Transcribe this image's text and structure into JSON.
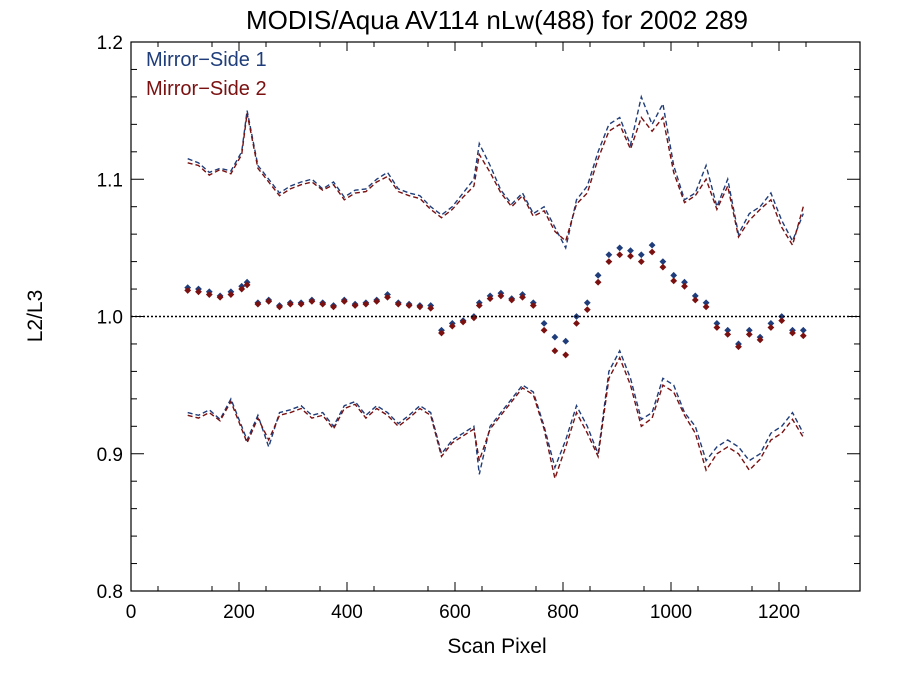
{
  "chart_data": {
    "type": "line",
    "title": "MODIS/Aqua AV114 nLw(488) for 2002 289",
    "xlabel": "Scan Pixel",
    "ylabel": "L2/L3",
    "xlim": [
      0,
      1350
    ],
    "ylim": [
      0.8,
      1.2
    ],
    "xticks": [
      0,
      200,
      400,
      600,
      800,
      1000,
      1200
    ],
    "xtick_labels": [
      "0",
      "200",
      "400",
      "600",
      "800",
      "1000",
      "1200"
    ],
    "yticks": [
      0.8,
      0.9,
      1.0,
      1.1,
      1.2
    ],
    "ytick_labels": [
      "0.8",
      "0.9",
      "1.0",
      "1.1",
      "1.2"
    ],
    "legend": [
      "Mirror−Side 1",
      "Mirror−Side 2"
    ],
    "legend_position": "top-left",
    "colors": {
      "ms1": "#1f3d7a",
      "ms2": "#7a1010",
      "ref": "#000000"
    },
    "reference_line": 1.0,
    "x": [
      105,
      125,
      145,
      165,
      185,
      205,
      215,
      235,
      255,
      275,
      295,
      315,
      335,
      355,
      375,
      395,
      415,
      435,
      455,
      475,
      495,
      515,
      535,
      555,
      575,
      595,
      615,
      635,
      645,
      665,
      685,
      705,
      725,
      745,
      765,
      785,
      805,
      825,
      845,
      865,
      885,
      905,
      925,
      945,
      965,
      985,
      1005,
      1025,
      1045,
      1065,
      1085,
      1105,
      1125,
      1145,
      1165,
      1185,
      1205,
      1225,
      1245
    ],
    "series": [
      {
        "name": "Mirror−Side 1",
        "upper": [
          1.115,
          1.112,
          1.105,
          1.108,
          1.106,
          1.12,
          1.15,
          1.11,
          1.1,
          1.09,
          1.095,
          1.098,
          1.1,
          1.093,
          1.098,
          1.087,
          1.092,
          1.093,
          1.1,
          1.105,
          1.093,
          1.09,
          1.088,
          1.08,
          1.074,
          1.08,
          1.09,
          1.1,
          1.126,
          1.11,
          1.092,
          1.082,
          1.09,
          1.075,
          1.08,
          1.065,
          1.05,
          1.085,
          1.095,
          1.12,
          1.14,
          1.145,
          1.125,
          1.16,
          1.14,
          1.155,
          1.11,
          1.085,
          1.09,
          1.11,
          1.08,
          1.1,
          1.06,
          1.075,
          1.08,
          1.09,
          1.07,
          1.055,
          1.075
        ],
        "ratio": [
          1.021,
          1.02,
          1.018,
          1.015,
          1.018,
          1.022,
          1.025,
          1.01,
          1.012,
          1.008,
          1.01,
          1.01,
          1.012,
          1.01,
          1.008,
          1.012,
          1.009,
          1.01,
          1.012,
          1.016,
          1.01,
          1.009,
          1.008,
          1.008,
          0.99,
          0.995,
          0.997,
          1.0,
          1.01,
          1.015,
          1.017,
          1.013,
          1.016,
          1.01,
          0.995,
          0.985,
          0.982,
          1.0,
          1.01,
          1.03,
          1.045,
          1.05,
          1.048,
          1.045,
          1.052,
          1.04,
          1.03,
          1.025,
          1.015,
          1.01,
          0.995,
          0.99,
          0.98,
          0.99,
          0.985,
          0.995,
          1.0,
          0.99,
          0.99
        ],
        "lower": [
          0.93,
          0.928,
          0.932,
          0.925,
          0.94,
          0.92,
          0.91,
          0.928,
          0.905,
          0.93,
          0.932,
          0.935,
          0.928,
          0.93,
          0.92,
          0.935,
          0.938,
          0.928,
          0.935,
          0.93,
          0.922,
          0.928,
          0.935,
          0.93,
          0.9,
          0.91,
          0.915,
          0.92,
          0.885,
          0.92,
          0.93,
          0.94,
          0.95,
          0.945,
          0.92,
          0.89,
          0.91,
          0.935,
          0.92,
          0.9,
          0.96,
          0.975,
          0.955,
          0.925,
          0.93,
          0.955,
          0.95,
          0.93,
          0.92,
          0.895,
          0.905,
          0.91,
          0.905,
          0.895,
          0.9,
          0.915,
          0.92,
          0.93,
          0.915
        ]
      },
      {
        "name": "Mirror−Side 2",
        "upper": [
          1.112,
          1.11,
          1.103,
          1.107,
          1.104,
          1.118,
          1.148,
          1.108,
          1.098,
          1.088,
          1.093,
          1.096,
          1.098,
          1.092,
          1.096,
          1.085,
          1.09,
          1.091,
          1.098,
          1.102,
          1.091,
          1.088,
          1.086,
          1.078,
          1.072,
          1.078,
          1.087,
          1.095,
          1.118,
          1.105,
          1.09,
          1.08,
          1.088,
          1.073,
          1.077,
          1.062,
          1.055,
          1.082,
          1.09,
          1.115,
          1.135,
          1.14,
          1.122,
          1.145,
          1.135,
          1.145,
          1.105,
          1.083,
          1.088,
          1.1,
          1.078,
          1.095,
          1.058,
          1.07,
          1.078,
          1.085,
          1.065,
          1.052,
          1.08
        ],
        "ratio": [
          1.019,
          1.018,
          1.016,
          1.014,
          1.016,
          1.02,
          1.023,
          1.009,
          1.011,
          1.007,
          1.009,
          1.009,
          1.011,
          1.009,
          1.007,
          1.011,
          1.008,
          1.009,
          1.011,
          1.014,
          1.009,
          1.008,
          1.007,
          1.006,
          0.988,
          0.993,
          0.996,
          0.999,
          1.008,
          1.013,
          1.015,
          1.012,
          1.014,
          1.008,
          0.99,
          0.975,
          0.972,
          0.995,
          1.005,
          1.025,
          1.04,
          1.045,
          1.044,
          1.04,
          1.047,
          1.036,
          1.026,
          1.022,
          1.012,
          1.007,
          0.992,
          0.987,
          0.978,
          0.987,
          0.983,
          0.992,
          0.997,
          0.988,
          0.986
        ],
        "lower": [
          0.928,
          0.926,
          0.93,
          0.924,
          0.938,
          0.918,
          0.908,
          0.926,
          0.91,
          0.928,
          0.93,
          0.933,
          0.926,
          0.928,
          0.918,
          0.933,
          0.936,
          0.926,
          0.933,
          0.928,
          0.92,
          0.926,
          0.933,
          0.928,
          0.898,
          0.908,
          0.913,
          0.918,
          0.895,
          0.918,
          0.928,
          0.938,
          0.948,
          0.943,
          0.918,
          0.882,
          0.905,
          0.93,
          0.915,
          0.898,
          0.955,
          0.97,
          0.95,
          0.92,
          0.926,
          0.95,
          0.945,
          0.928,
          0.915,
          0.888,
          0.9,
          0.905,
          0.9,
          0.888,
          0.896,
          0.91,
          0.915,
          0.925,
          0.912
        ]
      }
    ]
  }
}
